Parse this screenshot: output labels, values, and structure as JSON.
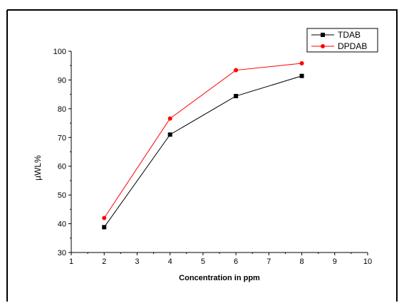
{
  "chart_data": {
    "type": "line",
    "title": "",
    "xlabel": "Concentration in ppm",
    "ylabel": "µWL%",
    "xlim": [
      1,
      10
    ],
    "ylim": [
      30,
      100
    ],
    "xticks": [
      1,
      2,
      3,
      4,
      5,
      6,
      7,
      8,
      9,
      10
    ],
    "yticks": [
      30,
      40,
      50,
      60,
      70,
      80,
      90,
      100
    ],
    "grid": false,
    "legend_position": "top-right",
    "series": [
      {
        "name": "TDAB",
        "color": "#000000",
        "marker": "square",
        "x": [
          2,
          4,
          6,
          8
        ],
        "y": [
          38.8,
          71.0,
          84.4,
          91.4
        ]
      },
      {
        "name": "DPDAB",
        "color": "#ff0000",
        "marker": "circle",
        "x": [
          2,
          4,
          6,
          8
        ],
        "y": [
          42.0,
          76.6,
          93.4,
          95.8
        ]
      }
    ]
  }
}
